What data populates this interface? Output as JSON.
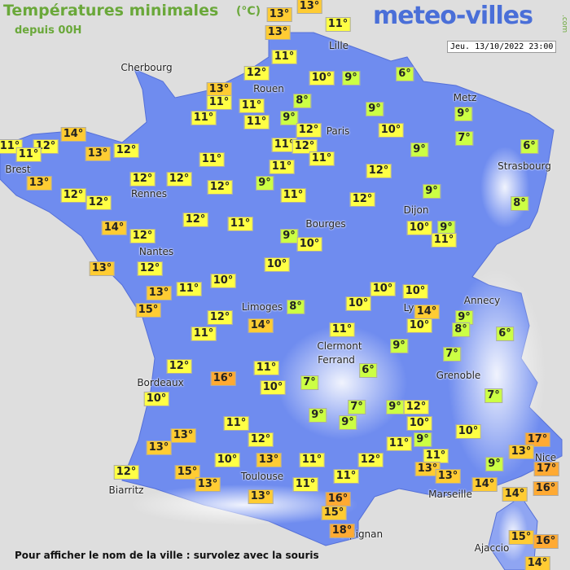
{
  "header": {
    "title": "Températures minimales",
    "unit": "(°C)",
    "subtitle": "depuis 00H",
    "logo": "meteo-villes",
    "logo_suffix": ".com",
    "datetime": "Jeu. 13/10/2022 23:00"
  },
  "cities": [
    "Lille",
    "Cherbourg",
    "Rouen",
    "Metz",
    "Paris",
    "Brest",
    "Strasbourg",
    "Rennes",
    "Dijon",
    "Bourges",
    "Nantes",
    "Annecy",
    "Limoges",
    "Ly",
    "Clermont",
    "Ferrand",
    "Grenoble",
    "Bordeaux",
    "Nice",
    "Toulouse",
    "Marseille",
    "Biarritz",
    "Perpignan",
    "Ajaccio"
  ],
  "temperatures": [
    "13°",
    "13°",
    "13°",
    "11°",
    "11°",
    "12°",
    "10°",
    "9°",
    "6°",
    "13°",
    "11°",
    "11°",
    "8°",
    "9°",
    "9°",
    "11°",
    "11°",
    "9°",
    "12°",
    "10°",
    "7°",
    "14°",
    "11°",
    "12°",
    "11°",
    "13°",
    "12°",
    "11°",
    "12°",
    "9°",
    "6°",
    "11°",
    "11°",
    "11°",
    "12°",
    "13°",
    "12°",
    "12°",
    "12°",
    "9°",
    "11°",
    "9°",
    "12°",
    "12°",
    "12°",
    "8°",
    "14°",
    "12°",
    "11°",
    "12°",
    "9°",
    "10°",
    "10°",
    "9°",
    "11°",
    "13°",
    "12°",
    "10°",
    "10°",
    "11°",
    "13°",
    "15°",
    "10°",
    "10°",
    "8°",
    "10°",
    "14°",
    "9°",
    "12°",
    "10°",
    "8°",
    "6°",
    "11°",
    "14°",
    "11°",
    "9°",
    "7°",
    "12°",
    "11°",
    "6°",
    "16°",
    "10°",
    "7°",
    "10°",
    "7°",
    "7°",
    "9°",
    "12°",
    "9°",
    "9°",
    "10°",
    "11°",
    "10°",
    "13°",
    "12°",
    "9°",
    "11°",
    "17°",
    "13°",
    "13°",
    "10°",
    "13°",
    "11°",
    "12°",
    "11°",
    "13°",
    "9°",
    "17°",
    "12°",
    "15°",
    "13°",
    "11°",
    "13°",
    "14°",
    "11°",
    "16°",
    "14°",
    "16°",
    "13°",
    "15°",
    "18°",
    "15°",
    "16°",
    "14°"
  ],
  "footer": "Pour afficher le nom de la ville : survolez avec la souris"
}
